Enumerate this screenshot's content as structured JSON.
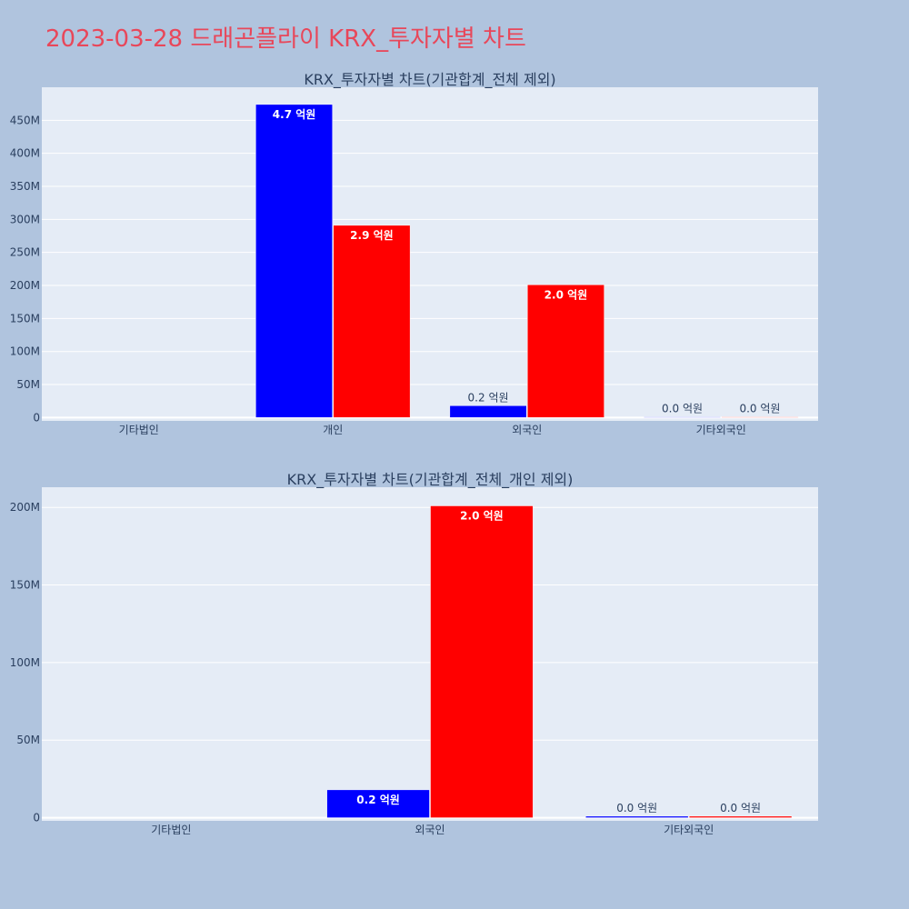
{
  "page": {
    "title": "2023-03-28 드래곤플라이 KRX_투자자별 차트"
  },
  "colors": {
    "background": "#b0c4de",
    "plot_bg": "#e5ecf6",
    "title": "#e8475a",
    "series_a": "#0000ff",
    "series_b": "#ff0000"
  },
  "chart_data": [
    {
      "type": "bar",
      "title": "KRX_투자자별 차트(기관합계_전체 제외)",
      "categories": [
        "기타법인",
        "개인",
        "외국인",
        "기타외국인"
      ],
      "series": [
        {
          "color": "#0000ff",
          "values": [
            0,
            474000000,
            18000000,
            1000000
          ],
          "labels": [
            "",
            "4.7 억원",
            "0.2 억원",
            "0.0 억원"
          ]
        },
        {
          "color": "#ff0000",
          "values": [
            0,
            291000000,
            201000000,
            1000000
          ],
          "labels": [
            "",
            "2.9 억원",
            "2.0 억원",
            "0.0 억원"
          ]
        }
      ],
      "yticks": [
        0,
        50000000,
        100000000,
        150000000,
        200000000,
        250000000,
        300000000,
        350000000,
        400000000,
        450000000
      ],
      "ytick_labels": [
        "0",
        "50M",
        "100M",
        "150M",
        "200M",
        "250M",
        "300M",
        "350M",
        "400M",
        "450M"
      ],
      "ylim": [
        -5000000,
        500000000
      ],
      "grid": true
    },
    {
      "type": "bar",
      "title": "KRX_투자자별 차트(기관합계_전체_개인 제외)",
      "categories": [
        "기타법인",
        "외국인",
        "기타외국인"
      ],
      "series": [
        {
          "color": "#0000ff",
          "values": [
            0,
            18000000,
            1000000
          ],
          "labels": [
            "",
            "0.2 억원",
            "0.0 억원"
          ]
        },
        {
          "color": "#ff0000",
          "values": [
            0,
            201000000,
            1000000
          ],
          "labels": [
            "",
            "2.0 억원",
            "0.0 억원"
          ]
        }
      ],
      "yticks": [
        0,
        50000000,
        100000000,
        150000000,
        200000000
      ],
      "ytick_labels": [
        "0",
        "50M",
        "100M",
        "150M",
        "200M"
      ],
      "ylim": [
        -2000000,
        213000000
      ],
      "grid": true
    }
  ]
}
